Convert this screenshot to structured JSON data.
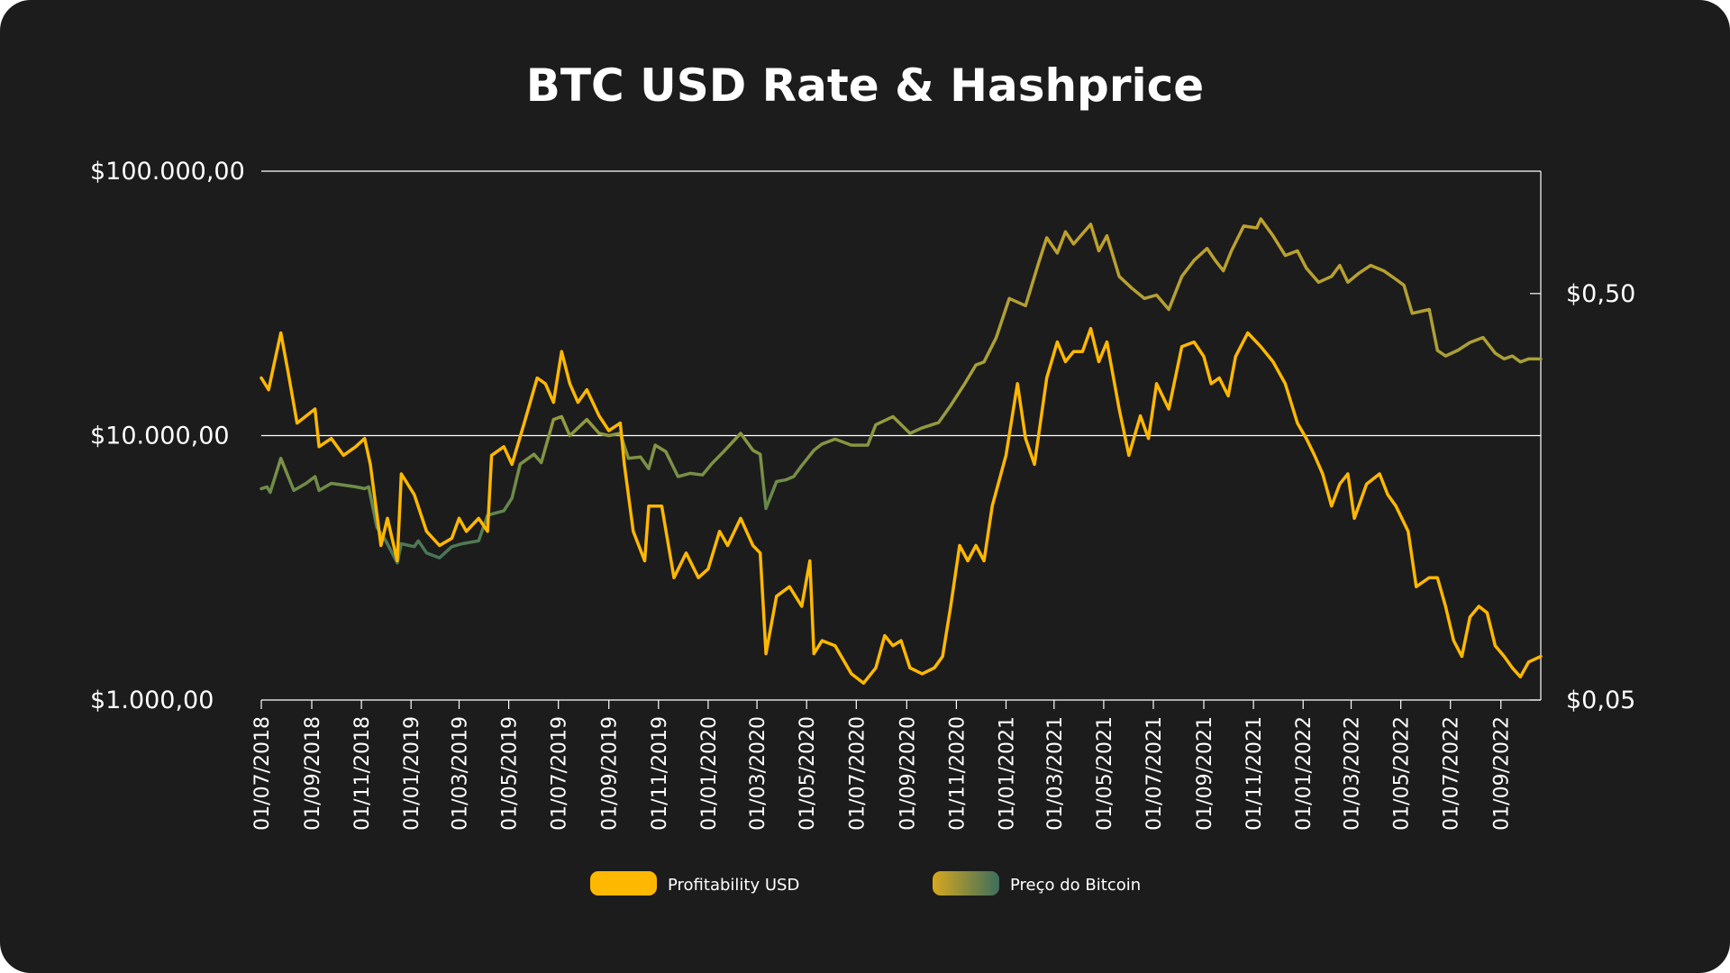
{
  "title": "BTC USD Rate & Hashprice",
  "chart_data": {
    "type": "line",
    "title": "BTC USD Rate & Hashprice",
    "y_left": {
      "scale": "log",
      "ylim": [
        1000,
        100000
      ],
      "ticks": [
        1000,
        10000,
        100000
      ],
      "tick_labels": [
        "$1.000,00",
        "$10.000,00",
        "$100.000,00"
      ]
    },
    "y_right": {
      "scale": "log",
      "ylim": [
        0.05,
        1.0
      ],
      "ticks": [
        0.05,
        0.5
      ],
      "tick_labels": [
        "$0,05",
        "$0,50"
      ]
    },
    "x_range": [
      "2018-07-01",
      "2022-10-20"
    ],
    "x_ticks": [
      "2018-07-01",
      "2018-09-01",
      "2018-11-01",
      "2019-01-01",
      "2019-03-01",
      "2019-05-01",
      "2019-07-01",
      "2019-09-01",
      "2019-11-01",
      "2020-01-01",
      "2020-03-01",
      "2020-05-01",
      "2020-07-01",
      "2020-09-01",
      "2020-11-01",
      "2021-01-01",
      "2021-03-01",
      "2021-05-01",
      "2021-07-01",
      "2021-09-01",
      "2021-11-01",
      "2022-01-01",
      "2022-03-01",
      "2022-05-01",
      "2022-07-01",
      "2022-09-01"
    ],
    "x_tick_labels": [
      "01/07/2018",
      "01/09/2018",
      "01/11/2018",
      "01/01/2019",
      "01/03/2019",
      "01/05/2019",
      "01/07/2019",
      "01/09/2019",
      "01/11/2019",
      "01/01/2020",
      "01/03/2020",
      "01/05/2020",
      "01/07/2020",
      "01/09/2020",
      "01/11/2020",
      "01/01/2021",
      "01/03/2021",
      "01/05/2021",
      "01/07/2021",
      "01/09/2021",
      "01/11/2021",
      "01/01/2022",
      "01/03/2022",
      "01/05/2022",
      "01/07/2022",
      "01/09/2022"
    ],
    "grid": "horizontal",
    "legend_position": "bottom",
    "series": [
      {
        "name": "Profitability USD",
        "axis": "right",
        "color": "#ffb800",
        "points": [
          [
            "2018-07-01",
            0.31
          ],
          [
            "2018-07-10",
            0.29
          ],
          [
            "2018-07-16",
            0.33
          ],
          [
            "2018-07-25",
            0.4
          ],
          [
            "2018-08-03",
            0.32
          ],
          [
            "2018-08-14",
            0.24
          ],
          [
            "2018-09-05",
            0.26
          ],
          [
            "2018-09-10",
            0.21
          ],
          [
            "2018-09-25",
            0.22
          ],
          [
            "2018-10-10",
            0.2
          ],
          [
            "2018-10-25",
            0.21
          ],
          [
            "2018-11-05",
            0.22
          ],
          [
            "2018-11-12",
            0.19
          ],
          [
            "2018-11-25",
            0.12
          ],
          [
            "2018-12-03",
            0.14
          ],
          [
            "2018-12-15",
            0.11
          ],
          [
            "2018-12-20",
            0.18
          ],
          [
            "2019-01-05",
            0.16
          ],
          [
            "2019-01-20",
            0.13
          ],
          [
            "2019-02-05",
            0.12
          ],
          [
            "2019-02-20",
            0.125
          ],
          [
            "2019-03-01",
            0.14
          ],
          [
            "2019-03-10",
            0.13
          ],
          [
            "2019-03-25",
            0.14
          ],
          [
            "2019-04-05",
            0.13
          ],
          [
            "2019-04-10",
            0.2
          ],
          [
            "2019-04-25",
            0.21
          ],
          [
            "2019-05-05",
            0.19
          ],
          [
            "2019-05-20",
            0.24
          ],
          [
            "2019-06-05",
            0.31
          ],
          [
            "2019-06-15",
            0.3
          ],
          [
            "2019-06-25",
            0.27
          ],
          [
            "2019-07-05",
            0.36
          ],
          [
            "2019-07-15",
            0.3
          ],
          [
            "2019-07-25",
            0.27
          ],
          [
            "2019-08-05",
            0.29
          ],
          [
            "2019-08-20",
            0.25
          ],
          [
            "2019-09-01",
            0.23
          ],
          [
            "2019-09-15",
            0.24
          ],
          [
            "2019-09-20",
            0.19
          ],
          [
            "2019-10-01",
            0.13
          ],
          [
            "2019-10-15",
            0.11
          ],
          [
            "2019-10-20",
            0.15
          ],
          [
            "2019-11-05",
            0.15
          ],
          [
            "2019-11-20",
            0.1
          ],
          [
            "2019-12-05",
            0.115
          ],
          [
            "2019-12-20",
            0.1
          ],
          [
            "2020-01-01",
            0.105
          ],
          [
            "2020-01-15",
            0.13
          ],
          [
            "2020-01-25",
            0.12
          ],
          [
            "2020-02-10",
            0.14
          ],
          [
            "2020-02-25",
            0.12
          ],
          [
            "2020-03-05",
            0.115
          ],
          [
            "2020-03-12",
            0.065
          ],
          [
            "2020-03-25",
            0.09
          ],
          [
            "2020-04-10",
            0.095
          ],
          [
            "2020-04-25",
            0.085
          ],
          [
            "2020-05-05",
            0.11
          ],
          [
            "2020-05-10",
            0.065
          ],
          [
            "2020-05-20",
            0.07
          ],
          [
            "2020-06-05",
            0.068
          ],
          [
            "2020-06-25",
            0.058
          ],
          [
            "2020-07-10",
            0.055
          ],
          [
            "2020-07-25",
            0.06
          ],
          [
            "2020-08-05",
            0.072
          ],
          [
            "2020-08-15",
            0.068
          ],
          [
            "2020-08-25",
            0.07
          ],
          [
            "2020-09-05",
            0.06
          ],
          [
            "2020-09-20",
            0.058
          ],
          [
            "2020-10-05",
            0.06
          ],
          [
            "2020-10-15",
            0.064
          ],
          [
            "2020-10-25",
            0.085
          ],
          [
            "2020-11-05",
            0.12
          ],
          [
            "2020-11-15",
            0.11
          ],
          [
            "2020-11-25",
            0.12
          ],
          [
            "2020-12-05",
            0.11
          ],
          [
            "2020-12-15",
            0.15
          ],
          [
            "2021-01-01",
            0.2
          ],
          [
            "2021-01-15",
            0.3
          ],
          [
            "2021-01-25",
            0.22
          ],
          [
            "2021-02-05",
            0.19
          ],
          [
            "2021-02-20",
            0.31
          ],
          [
            "2021-03-05",
            0.38
          ],
          [
            "2021-03-15",
            0.34
          ],
          [
            "2021-03-25",
            0.36
          ],
          [
            "2021-04-05",
            0.36
          ],
          [
            "2021-04-15",
            0.41
          ],
          [
            "2021-04-25",
            0.34
          ],
          [
            "2021-05-05",
            0.38
          ],
          [
            "2021-05-20",
            0.26
          ],
          [
            "2021-06-01",
            0.2
          ],
          [
            "2021-06-15",
            0.25
          ],
          [
            "2021-06-25",
            0.22
          ],
          [
            "2021-07-05",
            0.3
          ],
          [
            "2021-07-20",
            0.26
          ],
          [
            "2021-08-05",
            0.37
          ],
          [
            "2021-08-20",
            0.38
          ],
          [
            "2021-09-01",
            0.35
          ],
          [
            "2021-09-10",
            0.3
          ],
          [
            "2021-09-20",
            0.31
          ],
          [
            "2021-10-01",
            0.28
          ],
          [
            "2021-10-10",
            0.35
          ],
          [
            "2021-10-25",
            0.4
          ],
          [
            "2021-11-10",
            0.37
          ],
          [
            "2021-11-25",
            0.34
          ],
          [
            "2021-12-10",
            0.3
          ],
          [
            "2021-12-25",
            0.24
          ],
          [
            "2022-01-05",
            0.22
          ],
          [
            "2022-01-15",
            0.2
          ],
          [
            "2022-01-25",
            0.18
          ],
          [
            "2022-02-05",
            0.15
          ],
          [
            "2022-02-15",
            0.17
          ],
          [
            "2022-02-25",
            0.18
          ],
          [
            "2022-03-05",
            0.14
          ],
          [
            "2022-03-20",
            0.17
          ],
          [
            "2022-04-05",
            0.18
          ],
          [
            "2022-04-15",
            0.16
          ],
          [
            "2022-04-25",
            0.15
          ],
          [
            "2022-05-10",
            0.13
          ],
          [
            "2022-05-20",
            0.095
          ],
          [
            "2022-06-05",
            0.1
          ],
          [
            "2022-06-15",
            0.1
          ],
          [
            "2022-06-25",
            0.085
          ],
          [
            "2022-07-05",
            0.07
          ],
          [
            "2022-07-15",
            0.064
          ],
          [
            "2022-07-25",
            0.08
          ],
          [
            "2022-08-05",
            0.085
          ],
          [
            "2022-08-15",
            0.082
          ],
          [
            "2022-08-25",
            0.068
          ],
          [
            "2022-09-05",
            0.064
          ],
          [
            "2022-09-15",
            0.06
          ],
          [
            "2022-09-25",
            0.057
          ],
          [
            "2022-10-05",
            0.062
          ],
          [
            "2022-10-20",
            0.064
          ]
        ]
      },
      {
        "name": "Preço do Bitcoin",
        "axis": "left",
        "color_gradient": [
          "#ffb800",
          "#3d6e5c"
        ],
        "points": [
          [
            "2018-07-01",
            6300
          ],
          [
            "2018-07-08",
            6400
          ],
          [
            "2018-07-12",
            6100
          ],
          [
            "2018-07-25",
            8200
          ],
          [
            "2018-08-10",
            6200
          ],
          [
            "2018-08-25",
            6600
          ],
          [
            "2018-09-05",
            7000
          ],
          [
            "2018-09-10",
            6200
          ],
          [
            "2018-09-25",
            6600
          ],
          [
            "2018-10-10",
            6500
          ],
          [
            "2018-10-25",
            6400
          ],
          [
            "2018-11-05",
            6300
          ],
          [
            "2018-11-10",
            6400
          ],
          [
            "2018-11-20",
            4500
          ],
          [
            "2018-12-01",
            4000
          ],
          [
            "2018-12-15",
            3300
          ],
          [
            "2018-12-20",
            3900
          ],
          [
            "2019-01-05",
            3800
          ],
          [
            "2019-01-10",
            4000
          ],
          [
            "2019-01-20",
            3600
          ],
          [
            "2019-02-05",
            3450
          ],
          [
            "2019-02-20",
            3800
          ],
          [
            "2019-03-05",
            3900
          ],
          [
            "2019-03-25",
            4000
          ],
          [
            "2019-04-05",
            5000
          ],
          [
            "2019-04-25",
            5200
          ],
          [
            "2019-05-05",
            5800
          ],
          [
            "2019-05-15",
            7800
          ],
          [
            "2019-06-01",
            8500
          ],
          [
            "2019-06-10",
            7900
          ],
          [
            "2019-06-25",
            11500
          ],
          [
            "2019-07-05",
            11800
          ],
          [
            "2019-07-15",
            10000
          ],
          [
            "2019-08-05",
            11500
          ],
          [
            "2019-08-20",
            10200
          ],
          [
            "2019-09-01",
            10000
          ],
          [
            "2019-09-15",
            10200
          ],
          [
            "2019-09-25",
            8200
          ],
          [
            "2019-10-10",
            8300
          ],
          [
            "2019-10-20",
            7500
          ],
          [
            "2019-10-28",
            9200
          ],
          [
            "2019-11-10",
            8700
          ],
          [
            "2019-11-25",
            7000
          ],
          [
            "2019-12-10",
            7200
          ],
          [
            "2019-12-25",
            7100
          ],
          [
            "2020-01-05",
            7800
          ],
          [
            "2020-01-20",
            8700
          ],
          [
            "2020-02-10",
            10200
          ],
          [
            "2020-02-25",
            8800
          ],
          [
            "2020-03-05",
            8500
          ],
          [
            "2020-03-12",
            5300
          ],
          [
            "2020-03-25",
            6700
          ],
          [
            "2020-04-05",
            6800
          ],
          [
            "2020-04-15",
            7000
          ],
          [
            "2020-04-25",
            7700
          ],
          [
            "2020-05-10",
            8800
          ],
          [
            "2020-05-20",
            9300
          ],
          [
            "2020-06-05",
            9700
          ],
          [
            "2020-06-25",
            9200
          ],
          [
            "2020-07-15",
            9200
          ],
          [
            "2020-07-25",
            11000
          ],
          [
            "2020-08-15",
            11800
          ],
          [
            "2020-09-05",
            10200
          ],
          [
            "2020-09-20",
            10700
          ],
          [
            "2020-10-10",
            11200
          ],
          [
            "2020-10-25",
            13000
          ],
          [
            "2020-11-10",
            15500
          ],
          [
            "2020-11-25",
            18500
          ],
          [
            "2020-12-05",
            19000
          ],
          [
            "2020-12-20",
            23500
          ],
          [
            "2021-01-05",
            33000
          ],
          [
            "2021-01-25",
            31000
          ],
          [
            "2021-02-10",
            45000
          ],
          [
            "2021-02-20",
            56000
          ],
          [
            "2021-03-05",
            49000
          ],
          [
            "2021-03-15",
            59000
          ],
          [
            "2021-03-25",
            53000
          ],
          [
            "2021-04-05",
            58000
          ],
          [
            "2021-04-15",
            63000
          ],
          [
            "2021-04-25",
            50000
          ],
          [
            "2021-05-05",
            57000
          ],
          [
            "2021-05-20",
            40000
          ],
          [
            "2021-06-05",
            36000
          ],
          [
            "2021-06-20",
            33000
          ],
          [
            "2021-07-05",
            34000
          ],
          [
            "2021-07-20",
            30000
          ],
          [
            "2021-08-05",
            40000
          ],
          [
            "2021-08-20",
            46000
          ],
          [
            "2021-09-05",
            51000
          ],
          [
            "2021-09-15",
            46000
          ],
          [
            "2021-09-25",
            42000
          ],
          [
            "2021-10-05",
            50000
          ],
          [
            "2021-10-20",
            62000
          ],
          [
            "2021-11-05",
            61000
          ],
          [
            "2021-11-10",
            66000
          ],
          [
            "2021-11-25",
            57000
          ],
          [
            "2021-12-10",
            48000
          ],
          [
            "2021-12-25",
            50000
          ],
          [
            "2022-01-05",
            43000
          ],
          [
            "2022-01-20",
            38000
          ],
          [
            "2022-02-05",
            40000
          ],
          [
            "2022-02-15",
            44000
          ],
          [
            "2022-02-25",
            38000
          ],
          [
            "2022-03-10",
            41000
          ],
          [
            "2022-03-25",
            44000
          ],
          [
            "2022-04-10",
            42000
          ],
          [
            "2022-04-25",
            39000
          ],
          [
            "2022-05-05",
            37000
          ],
          [
            "2022-05-15",
            29000
          ],
          [
            "2022-06-05",
            30000
          ],
          [
            "2022-06-15",
            21000
          ],
          [
            "2022-06-25",
            20000
          ],
          [
            "2022-07-10",
            21000
          ],
          [
            "2022-07-25",
            22500
          ],
          [
            "2022-08-10",
            23500
          ],
          [
            "2022-08-25",
            20500
          ],
          [
            "2022-09-05",
            19500
          ],
          [
            "2022-09-15",
            20000
          ],
          [
            "2022-09-25",
            19000
          ],
          [
            "2022-10-05",
            19500
          ],
          [
            "2022-10-20",
            19500
          ]
        ]
      }
    ]
  },
  "legend": [
    {
      "label": "Profitability USD",
      "color": "#ffb800"
    },
    {
      "label": "Preço do Bitcoin",
      "gradient": [
        "#d7a81f",
        "#3d6e5c"
      ]
    }
  ]
}
